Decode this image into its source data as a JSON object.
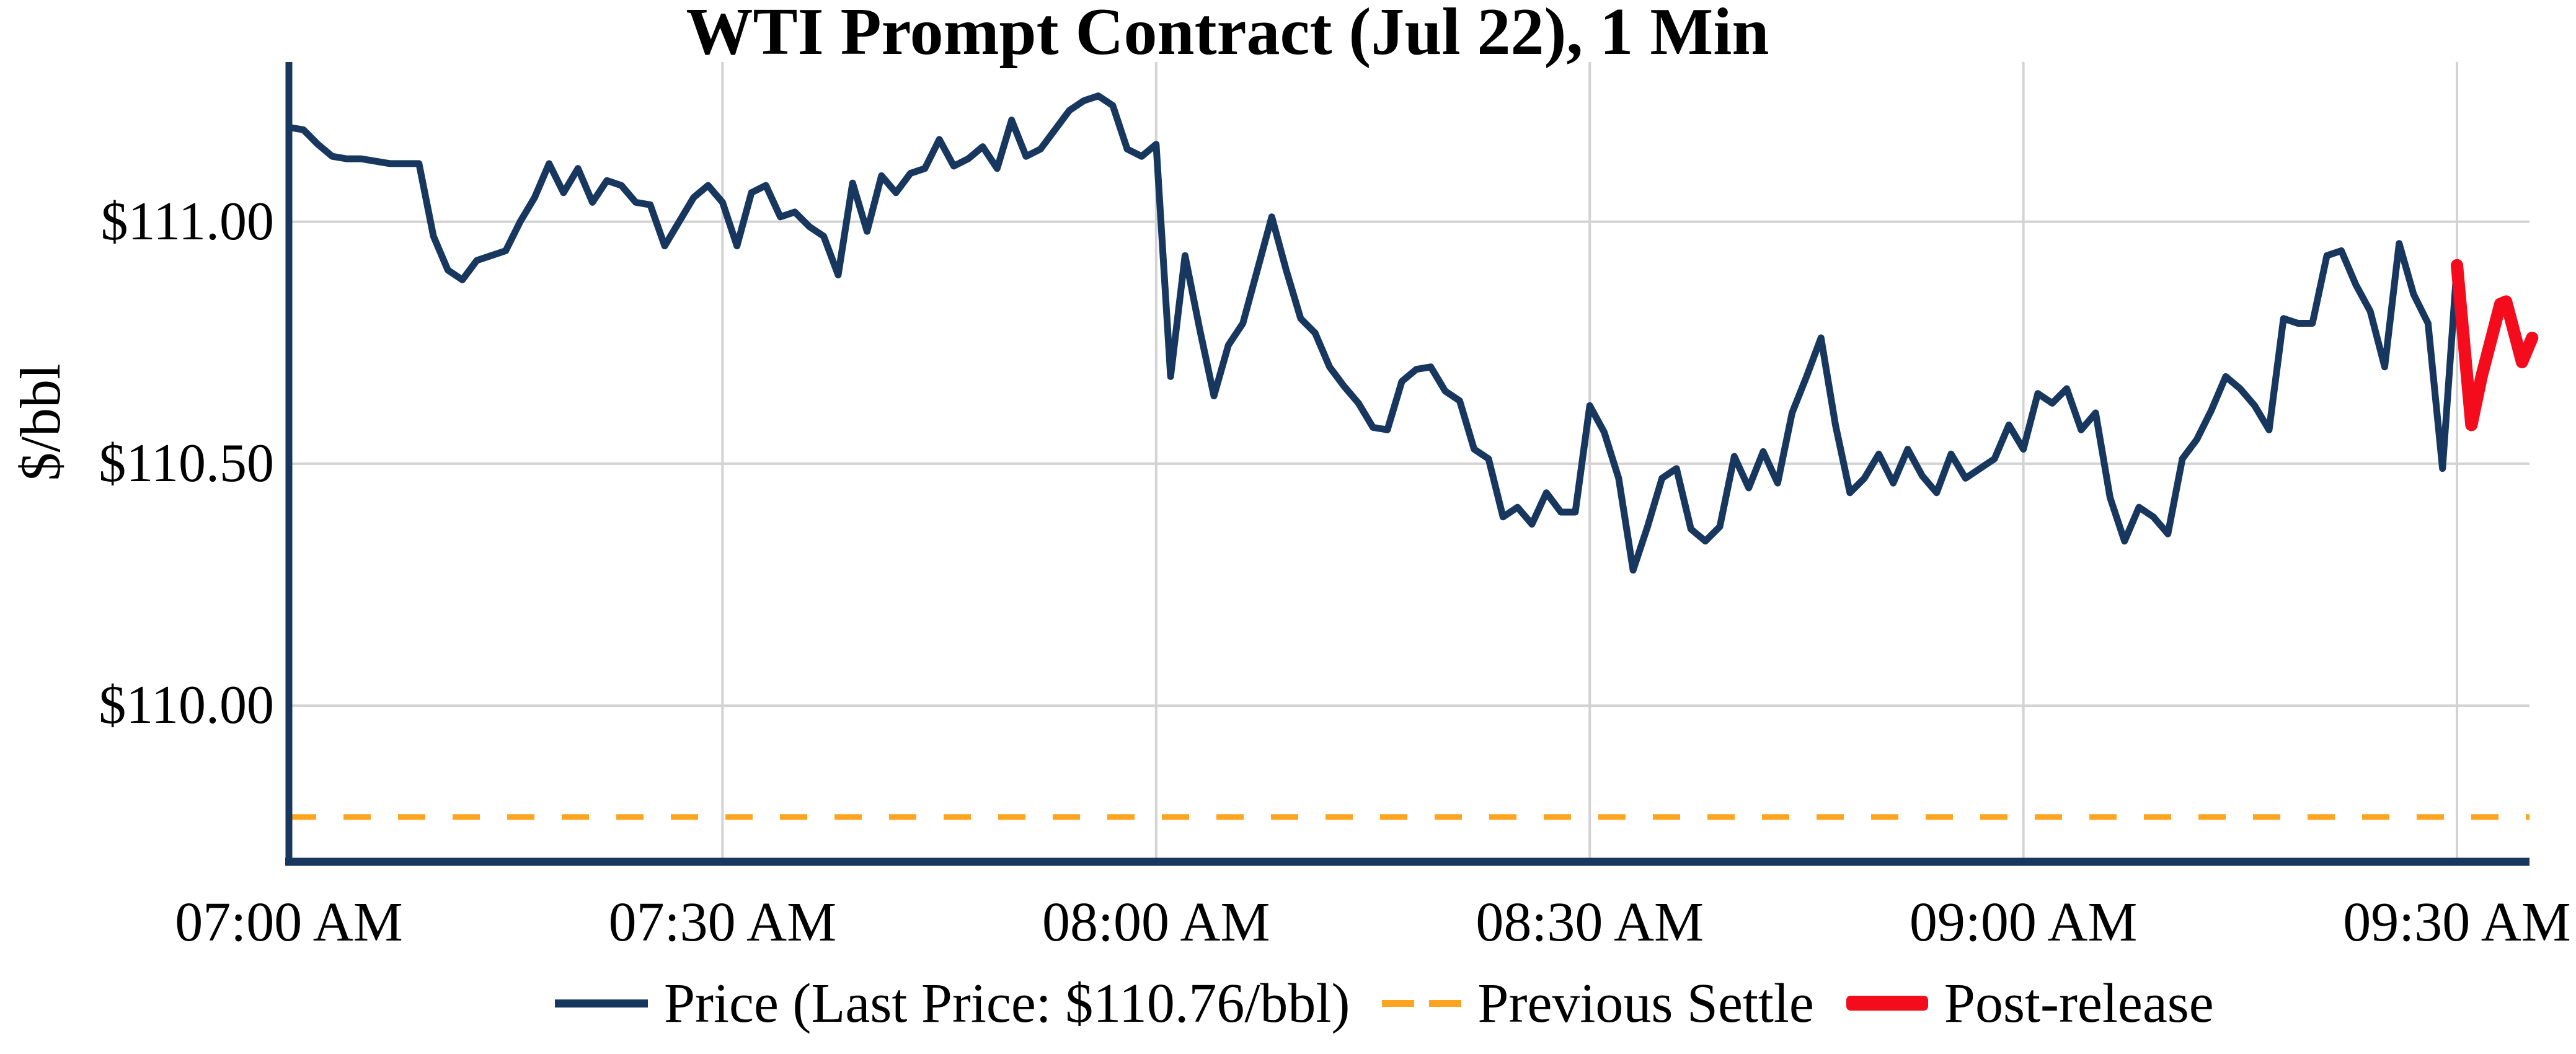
{
  "chart_data": {
    "type": "line",
    "title": "WTI Prompt Contract (Jul 22), 1 Min",
    "ylabel": "$/bbl",
    "xlabel": "",
    "grid": true,
    "legend_position": "bottom-center",
    "colors": {
      "price_line": "#17375e",
      "previous_settle_line": "#ffa420",
      "post_release_line": "#f40b1c",
      "gridline": "#d3d3d3",
      "text": "#000000",
      "background": "#ffffff"
    },
    "x_ticks": [
      {
        "label": "07:00 AM",
        "minute": 0
      },
      {
        "label": "07:30 AM",
        "minute": 30
      },
      {
        "label": "08:00 AM",
        "minute": 60
      },
      {
        "label": "08:30 AM",
        "minute": 90
      },
      {
        "label": "09:00 AM",
        "minute": 120
      },
      {
        "label": "09:30 AM",
        "minute": 150
      }
    ],
    "y_ticks": [
      {
        "label": "$111.00",
        "value": 111.0
      },
      {
        "label": "$110.50",
        "value": 110.5
      },
      {
        "label": "$110.00",
        "value": 110.0
      }
    ],
    "ylim": [
      109.68,
      111.33
    ],
    "x_domain_minutes": [
      0,
      155.3
    ],
    "last_price_label": "$110.76/bbl",
    "series": [
      {
        "name": "Price (Last Price: $110.76/bbl)",
        "type": "line",
        "start_time": "07:00 AM",
        "interval_minutes": 1,
        "values": [
          111.195,
          111.19,
          111.16,
          111.135,
          111.13,
          111.13,
          111.125,
          111.12,
          111.12,
          111.12,
          110.97,
          110.9,
          110.88,
          110.92,
          110.93,
          110.94,
          111.0,
          111.05,
          111.12,
          111.06,
          111.11,
          111.04,
          111.085,
          111.075,
          111.04,
          111.035,
          110.95,
          111.0,
          111.05,
          111.075,
          111.04,
          110.95,
          111.06,
          111.075,
          111.01,
          111.02,
          110.99,
          110.97,
          110.89,
          111.08,
          110.98,
          111.095,
          111.06,
          111.1,
          111.11,
          111.17,
          111.115,
          111.13,
          111.155,
          111.11,
          111.21,
          111.135,
          111.15,
          111.19,
          111.23,
          111.25,
          111.26,
          111.24,
          111.15,
          111.135,
          111.16,
          110.68,
          110.93,
          110.78,
          110.64,
          110.745,
          110.79,
          110.9,
          111.01,
          110.9,
          110.8,
          110.77,
          110.7,
          110.66,
          110.625,
          110.575,
          110.57,
          110.67,
          110.695,
          110.7,
          110.65,
          110.63,
          110.53,
          110.51,
          110.39,
          110.41,
          110.375,
          110.44,
          110.4,
          110.4,
          110.62,
          110.565,
          110.47,
          110.28,
          110.37,
          110.47,
          110.49,
          110.365,
          110.34,
          110.37,
          110.515,
          110.45,
          110.525,
          110.46,
          110.605,
          110.68,
          110.76,
          110.58,
          110.44,
          110.47,
          110.52,
          110.46,
          110.53,
          110.475,
          110.44,
          110.52,
          110.47,
          110.49,
          110.51,
          110.58,
          110.53,
          110.645,
          110.625,
          110.655,
          110.57,
          110.605,
          110.43,
          110.34,
          110.41,
          110.39,
          110.355,
          110.51,
          110.55,
          110.61,
          110.68,
          110.655,
          110.62,
          110.57,
          110.8,
          110.79,
          110.79,
          110.93,
          110.94,
          110.87,
          110.815,
          110.7,
          110.955,
          110.85,
          110.79,
          110.49,
          110.91
        ]
      },
      {
        "name": "Previous Settle",
        "type": "horizontal-dashed-line",
        "value": 109.77
      },
      {
        "name": "Post-release",
        "type": "line",
        "points_minute_price": [
          [
            150.0,
            110.91
          ],
          [
            151.0,
            110.58
          ],
          [
            151.7,
            110.68
          ],
          [
            153.0,
            110.83
          ],
          [
            153.4,
            110.835
          ],
          [
            154.5,
            110.71
          ],
          [
            155.2,
            110.76
          ]
        ]
      }
    ]
  }
}
